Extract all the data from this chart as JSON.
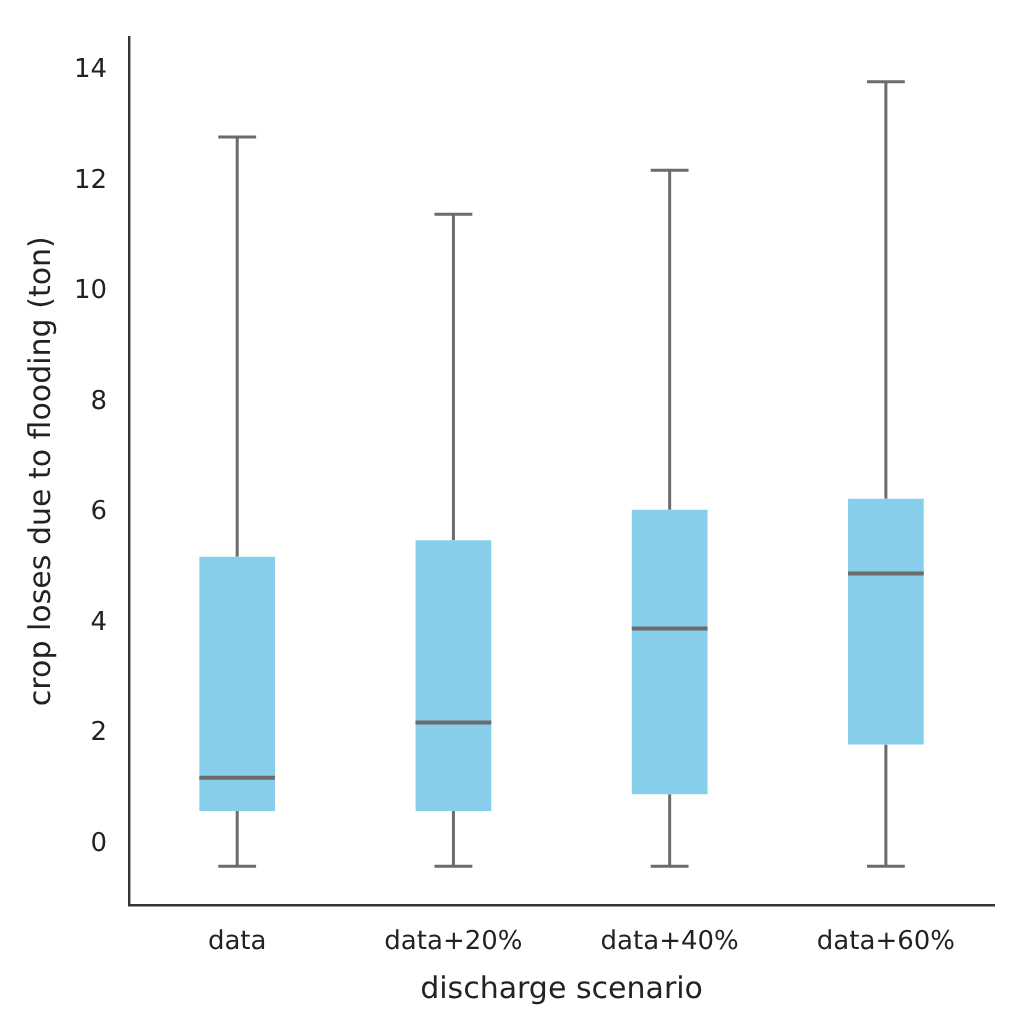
{
  "chart_data": {
    "type": "box",
    "xlabel": "discharge scenario",
    "ylabel": "crop loses due to flooding (ton)",
    "categories": [
      "data",
      "data+20%",
      "data+40%",
      "data+60%"
    ],
    "ylim": [
      -1.1,
      14.6
    ],
    "yticks": [
      0,
      2,
      4,
      6,
      8,
      10,
      12,
      14
    ],
    "grid": false,
    "legend": false,
    "series": [
      {
        "color": "#87ceeb",
        "boxes": [
          {
            "low": -0.4,
            "q1": 0.6,
            "median": 1.2,
            "q3": 5.2,
            "high": 12.8
          },
          {
            "low": -0.4,
            "q1": 0.6,
            "median": 2.2,
            "q3": 5.5,
            "high": 11.4
          },
          {
            "low": -0.4,
            "q1": 0.9,
            "median": 3.9,
            "q3": 6.05,
            "high": 12.2
          },
          {
            "low": -0.4,
            "q1": 1.8,
            "median": 4.9,
            "q3": 6.25,
            "high": 13.8
          }
        ]
      }
    ]
  }
}
